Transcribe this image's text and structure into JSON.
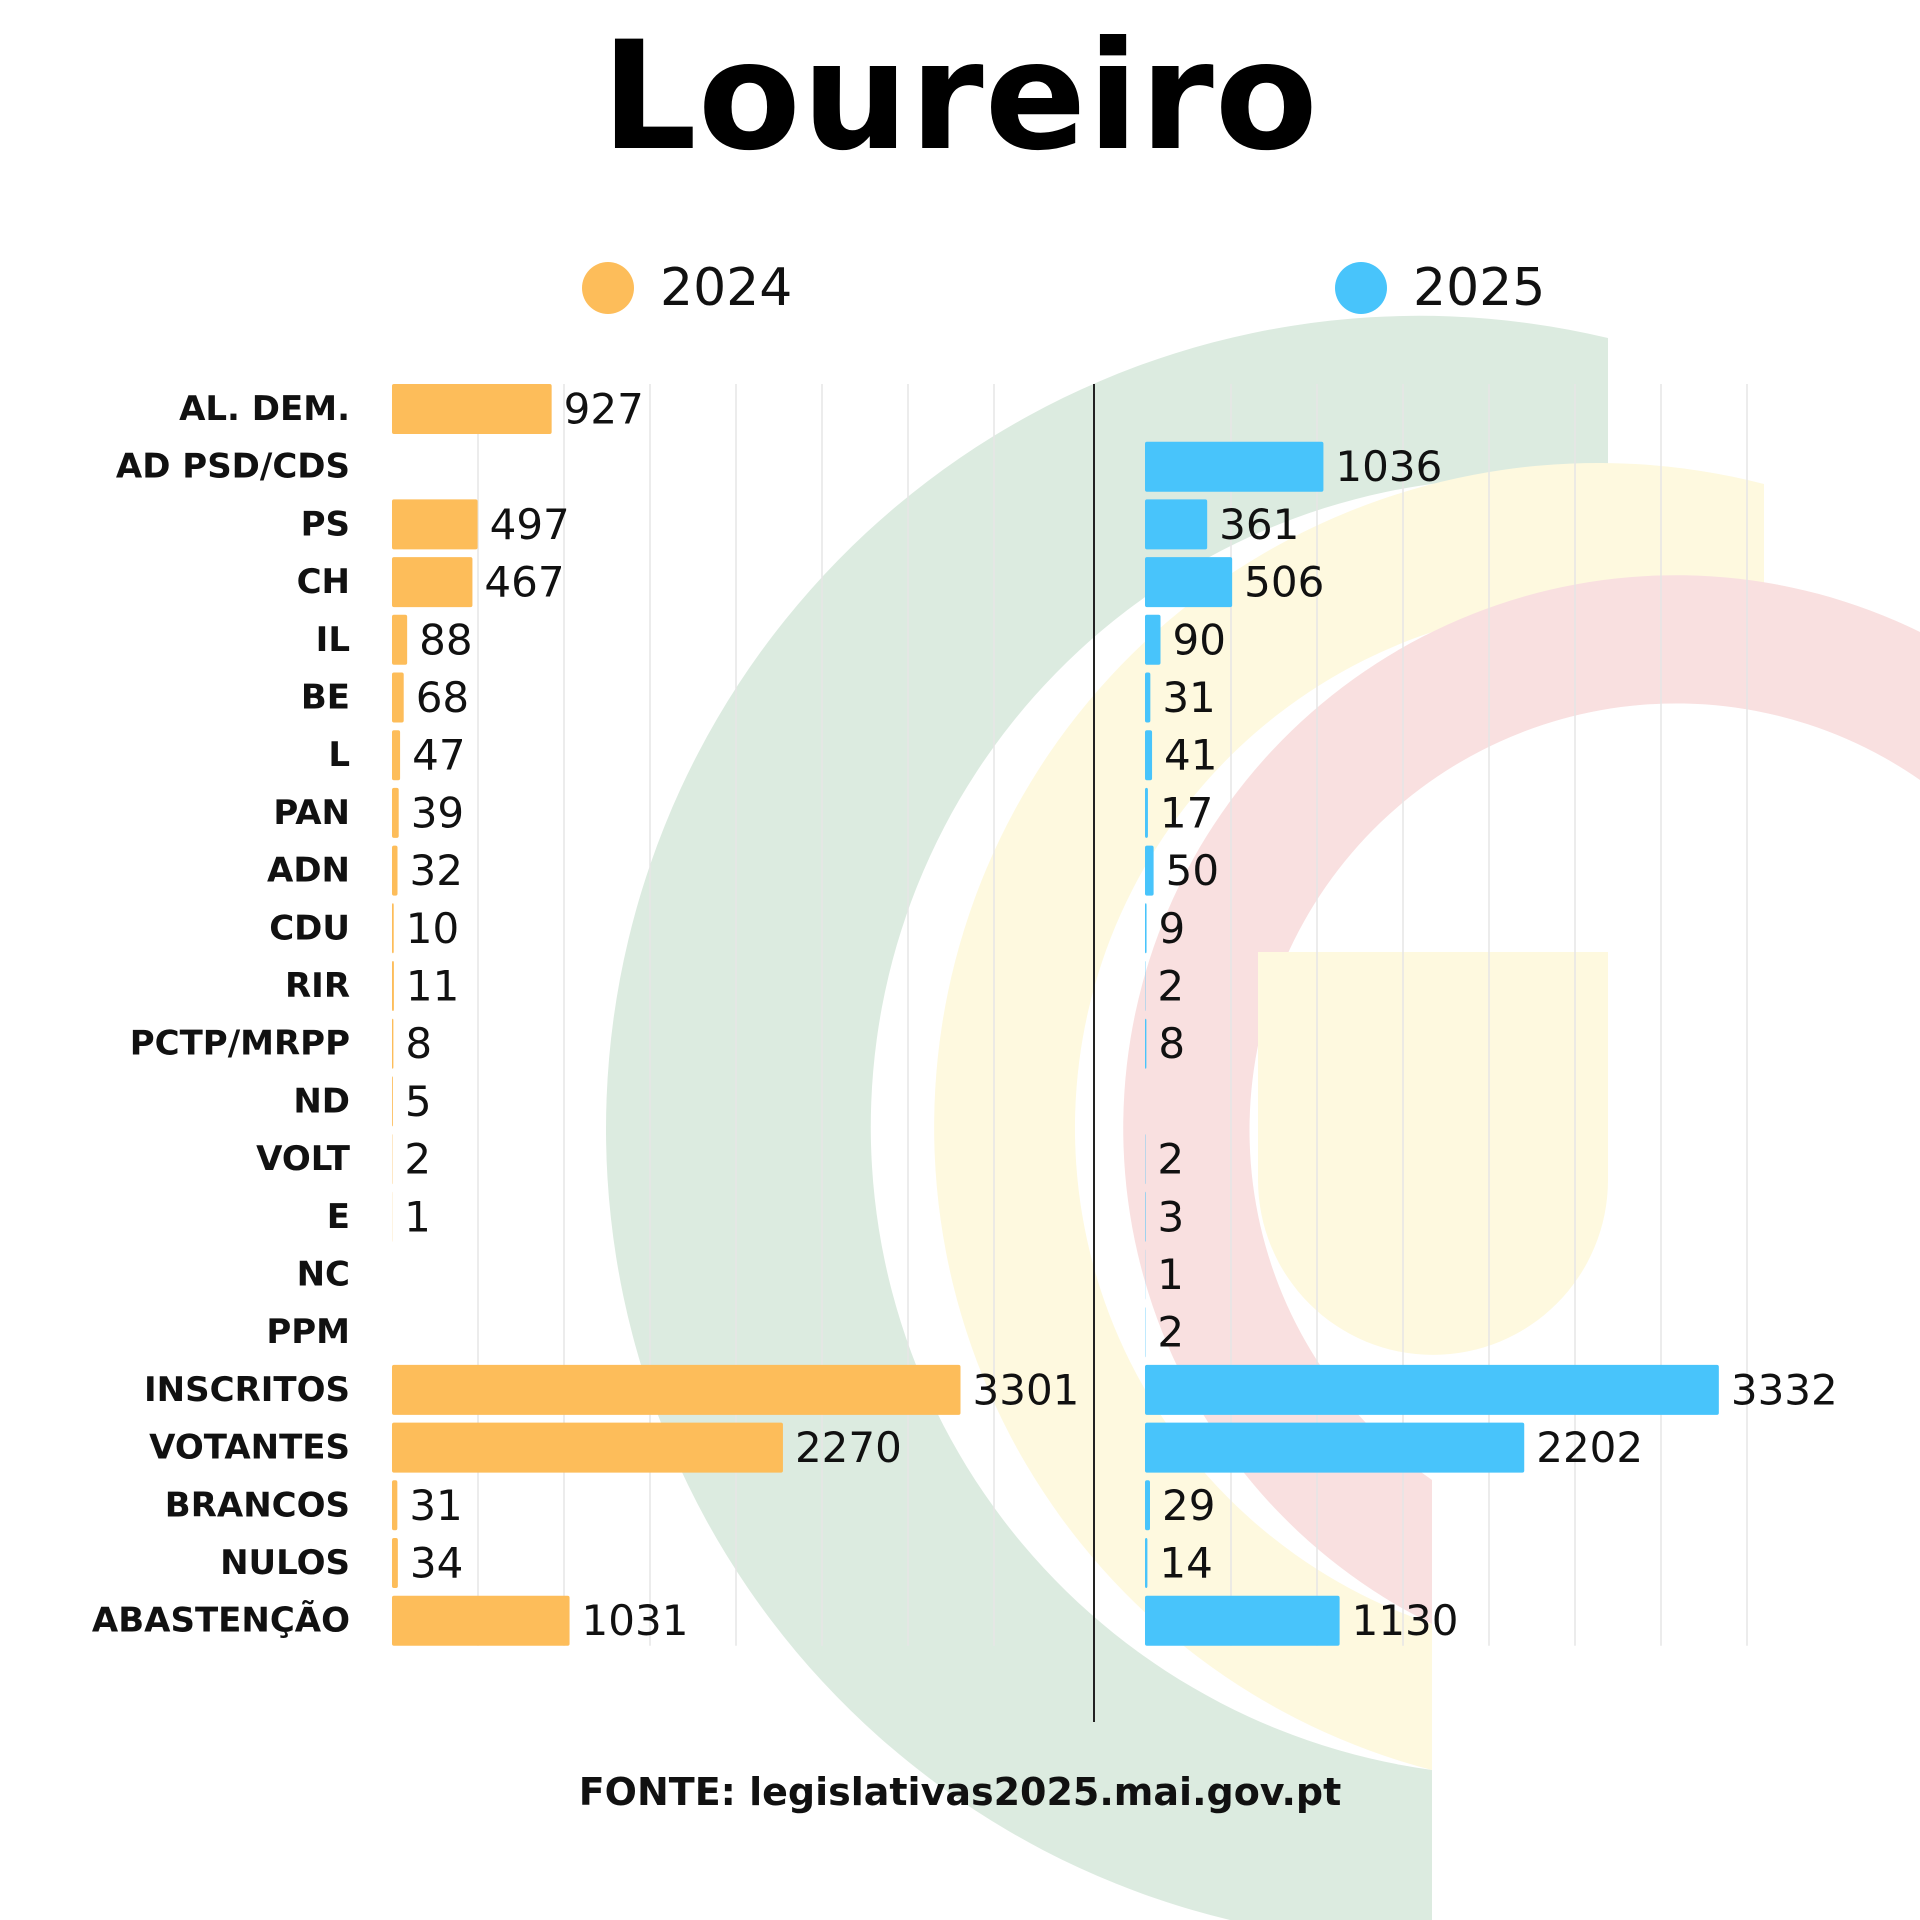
{
  "title": "Loureiro",
  "source": "FONTE: legislativas2025.mai.gov.pt",
  "colors": {
    "series_2024": "#FDBD5A",
    "series_2025": "#48C4FB",
    "text": "#111111",
    "gridline": "#E6E6E6",
    "divider": "#222222",
    "bg_green": "#DCEBE0",
    "bg_yellow": "#FEF9DF",
    "bg_pink": "#F9E0E0"
  },
  "legend": [
    {
      "name": "2024",
      "color": "#FDBD5A"
    },
    {
      "name": "2025",
      "color": "#48C4FB"
    }
  ],
  "chart_data": {
    "type": "bar",
    "orientation": "horizontal",
    "grid": true,
    "categories": [
      "AL. DEM.",
      "AD PSD/CDS",
      "PS",
      "CH",
      "IL",
      "BE",
      "L",
      "PAN",
      "ADN",
      "CDU",
      "RIR",
      "PCTP/MRPP",
      "ND",
      "VOLT",
      "E",
      "NC",
      "PPM",
      "INSCRITOS",
      "VOTANTES",
      "BRANCOS",
      "NULOS",
      "ABASTENÇÃO"
    ],
    "series": [
      {
        "name": "2024",
        "values": [
          927,
          null,
          497,
          467,
          88,
          68,
          47,
          39,
          32,
          10,
          11,
          8,
          5,
          2,
          1,
          null,
          null,
          3301,
          2270,
          31,
          34,
          1031
        ]
      },
      {
        "name": "2025",
        "values": [
          null,
          1036,
          361,
          506,
          90,
          31,
          41,
          17,
          50,
          9,
          2,
          8,
          null,
          2,
          3,
          1,
          2,
          3332,
          2202,
          29,
          14,
          1130
        ]
      }
    ],
    "xlim": [
      0,
      3600
    ]
  }
}
